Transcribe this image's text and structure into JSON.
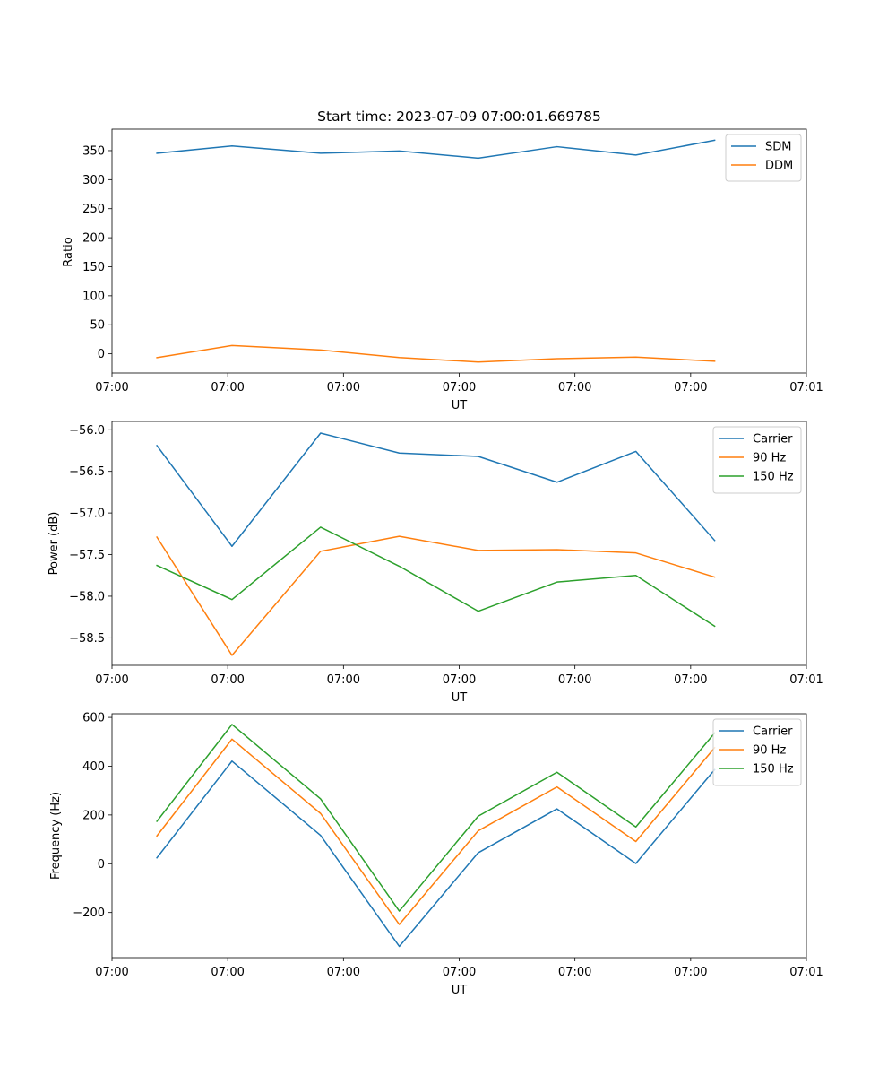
{
  "colors": {
    "c0": "#1f77b4",
    "c1": "#ff7f0e",
    "c2": "#2ca02c"
  },
  "chart_data": [
    {
      "type": "line",
      "title": "Start time: 2023-07-09 07:00:01.669785",
      "xlabel": "UT",
      "ylabel": "Ratio",
      "x": [
        4.85,
        12.96,
        22.53,
        31.03,
        39.55,
        48.06,
        56.58,
        65.09
      ],
      "xlim": [
        0,
        75
      ],
      "xtick_values": [
        0,
        12.5,
        25,
        37.5,
        50,
        62.5,
        75
      ],
      "xtick_labels": [
        "07:00",
        "07:00",
        "07:00",
        "07:00",
        "07:00",
        "07:00",
        "07:01"
      ],
      "ylim": [
        -33,
        387
      ],
      "yticks": [
        0,
        50,
        100,
        150,
        200,
        250,
        300,
        350
      ],
      "ytick_labels": [
        "0",
        "50",
        "100",
        "150",
        "200",
        "250",
        "300",
        "350"
      ],
      "legend_position": "top-right",
      "series": [
        {
          "name": "SDM",
          "color": "#1f77b4",
          "values": [
            345.5,
            358,
            345.5,
            349.3,
            337,
            356.8,
            342.4,
            367.9
          ]
        },
        {
          "name": "DDM",
          "color": "#ff7f0e",
          "values": [
            -6.5,
            14.3,
            6.5,
            -6.4,
            -14.1,
            -8.3,
            -5.6,
            -12.6
          ]
        }
      ]
    },
    {
      "type": "line",
      "title": "",
      "xlabel": "UT",
      "ylabel": "Power (dB)",
      "x": [
        4.85,
        12.96,
        22.53,
        31.03,
        39.55,
        48.06,
        56.58,
        65.09
      ],
      "xlim": [
        0,
        75
      ],
      "xtick_values": [
        0,
        12.5,
        25,
        37.5,
        50,
        62.5,
        75
      ],
      "xtick_labels": [
        "07:00",
        "07:00",
        "07:00",
        "07:00",
        "07:00",
        "07:00",
        "07:01"
      ],
      "ylim": [
        -58.83,
        -55.9
      ],
      "yticks": [
        -58.5,
        -58.0,
        -57.5,
        -57.0,
        -56.5,
        -56.0
      ],
      "ytick_labels": [
        "−58.5",
        "−58.0",
        "−57.5",
        "−57.0",
        "−56.5",
        "−56.0"
      ],
      "legend_position": "top-right",
      "series": [
        {
          "name": "Carrier",
          "color": "#1f77b4",
          "values": [
            -56.19,
            -57.4,
            -56.04,
            -56.28,
            -56.32,
            -56.63,
            -56.26,
            -57.33
          ]
        },
        {
          "name": "90 Hz",
          "color": "#ff7f0e",
          "values": [
            -57.29,
            -58.71,
            -57.46,
            -57.28,
            -57.45,
            -57.44,
            -57.48,
            -57.77
          ]
        },
        {
          "name": "150 Hz",
          "color": "#2ca02c",
          "values": [
            -57.63,
            -58.04,
            -57.17,
            -57.64,
            -58.18,
            -57.83,
            -57.75,
            -58.36
          ]
        }
      ]
    },
    {
      "type": "line",
      "title": "",
      "xlabel": "UT",
      "ylabel": "Frequency (Hz)",
      "x": [
        4.85,
        12.96,
        22.53,
        31.03,
        39.55,
        48.06,
        56.58,
        65.09
      ],
      "xlim": [
        0,
        75
      ],
      "xtick_values": [
        0,
        12.5,
        25,
        37.5,
        50,
        62.5,
        75
      ],
      "xtick_labels": [
        "07:00",
        "07:00",
        "07:00",
        "07:00",
        "07:00",
        "07:00",
        "07:01"
      ],
      "ylim": [
        -385,
        615
      ],
      "yticks": [
        -200,
        0,
        200,
        400,
        600
      ],
      "ytick_labels": [
        "−200",
        "0",
        "200",
        "400",
        "600"
      ],
      "legend_position": "top-right",
      "series": [
        {
          "name": "Carrier",
          "color": "#1f77b4",
          "values": [
            24,
            421,
            116,
            -339,
            45,
            225,
            1,
            386
          ]
        },
        {
          "name": "90 Hz",
          "color": "#ff7f0e",
          "values": [
            114,
            511,
            206,
            -249,
            135,
            315,
            91,
            476
          ]
        },
        {
          "name": "150 Hz",
          "color": "#2ca02c",
          "values": [
            174,
            571,
            266,
            -194,
            195,
            375,
            151,
            536
          ]
        }
      ]
    }
  ]
}
